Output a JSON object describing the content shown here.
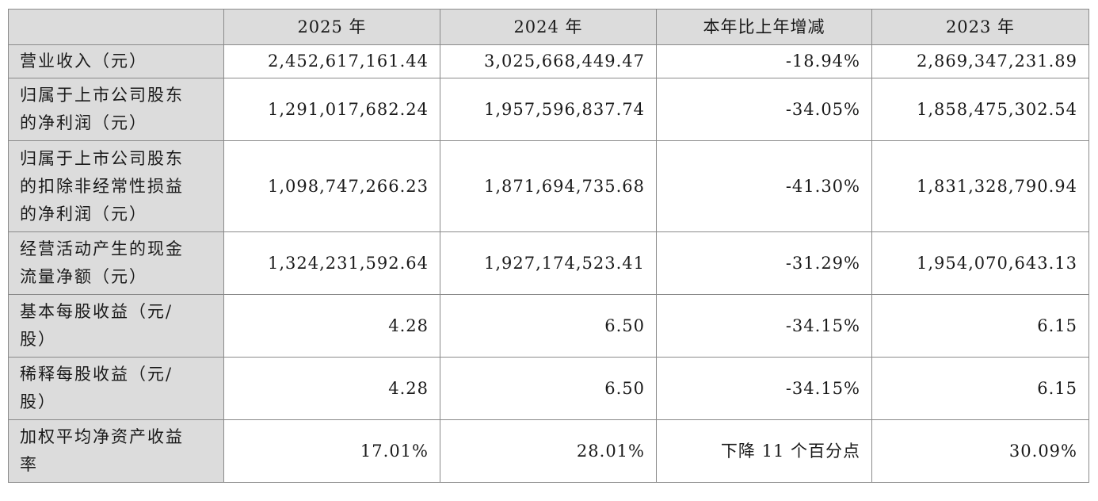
{
  "table": {
    "headers": [
      "",
      "2025 年",
      "2024 年",
      "本年比上年增减",
      "2023 年"
    ],
    "rows": [
      {
        "label": "营业收入（元）",
        "v2025": "2,452,617,161.44",
        "v2024": "3,025,668,449.47",
        "change": "-18.94%",
        "v2023": "2,869,347,231.89"
      },
      {
        "label": "归属于上市公司股东\n的净利润（元）",
        "v2025": "1,291,017,682.24",
        "v2024": "1,957,596,837.74",
        "change": "-34.05%",
        "v2023": "1,858,475,302.54"
      },
      {
        "label": "归属于上市公司股东\n的扣除非经常性损益\n的净利润（元）",
        "v2025": "1,098,747,266.23",
        "v2024": "1,871,694,735.68",
        "change": "-41.30%",
        "v2023": "1,831,328,790.94"
      },
      {
        "label": "经营活动产生的现金\n流量净额（元）",
        "v2025": "1,324,231,592.64",
        "v2024": "1,927,174,523.41",
        "change": "-31.29%",
        "v2023": "1,954,070,643.13"
      },
      {
        "label": "基本每股收益（元/\n股）",
        "v2025": "4.28",
        "v2024": "6.50",
        "change": "-34.15%",
        "v2023": "6.15"
      },
      {
        "label": "稀释每股收益（元/\n股）",
        "v2025": "4.28",
        "v2024": "6.50",
        "change": "-34.15%",
        "v2023": "6.15"
      },
      {
        "label": "加权平均净资产收益\n率",
        "v2025": "17.01%",
        "v2024": "28.01%",
        "change": "下降 11 个百分点",
        "v2023": "30.09%"
      }
    ]
  }
}
